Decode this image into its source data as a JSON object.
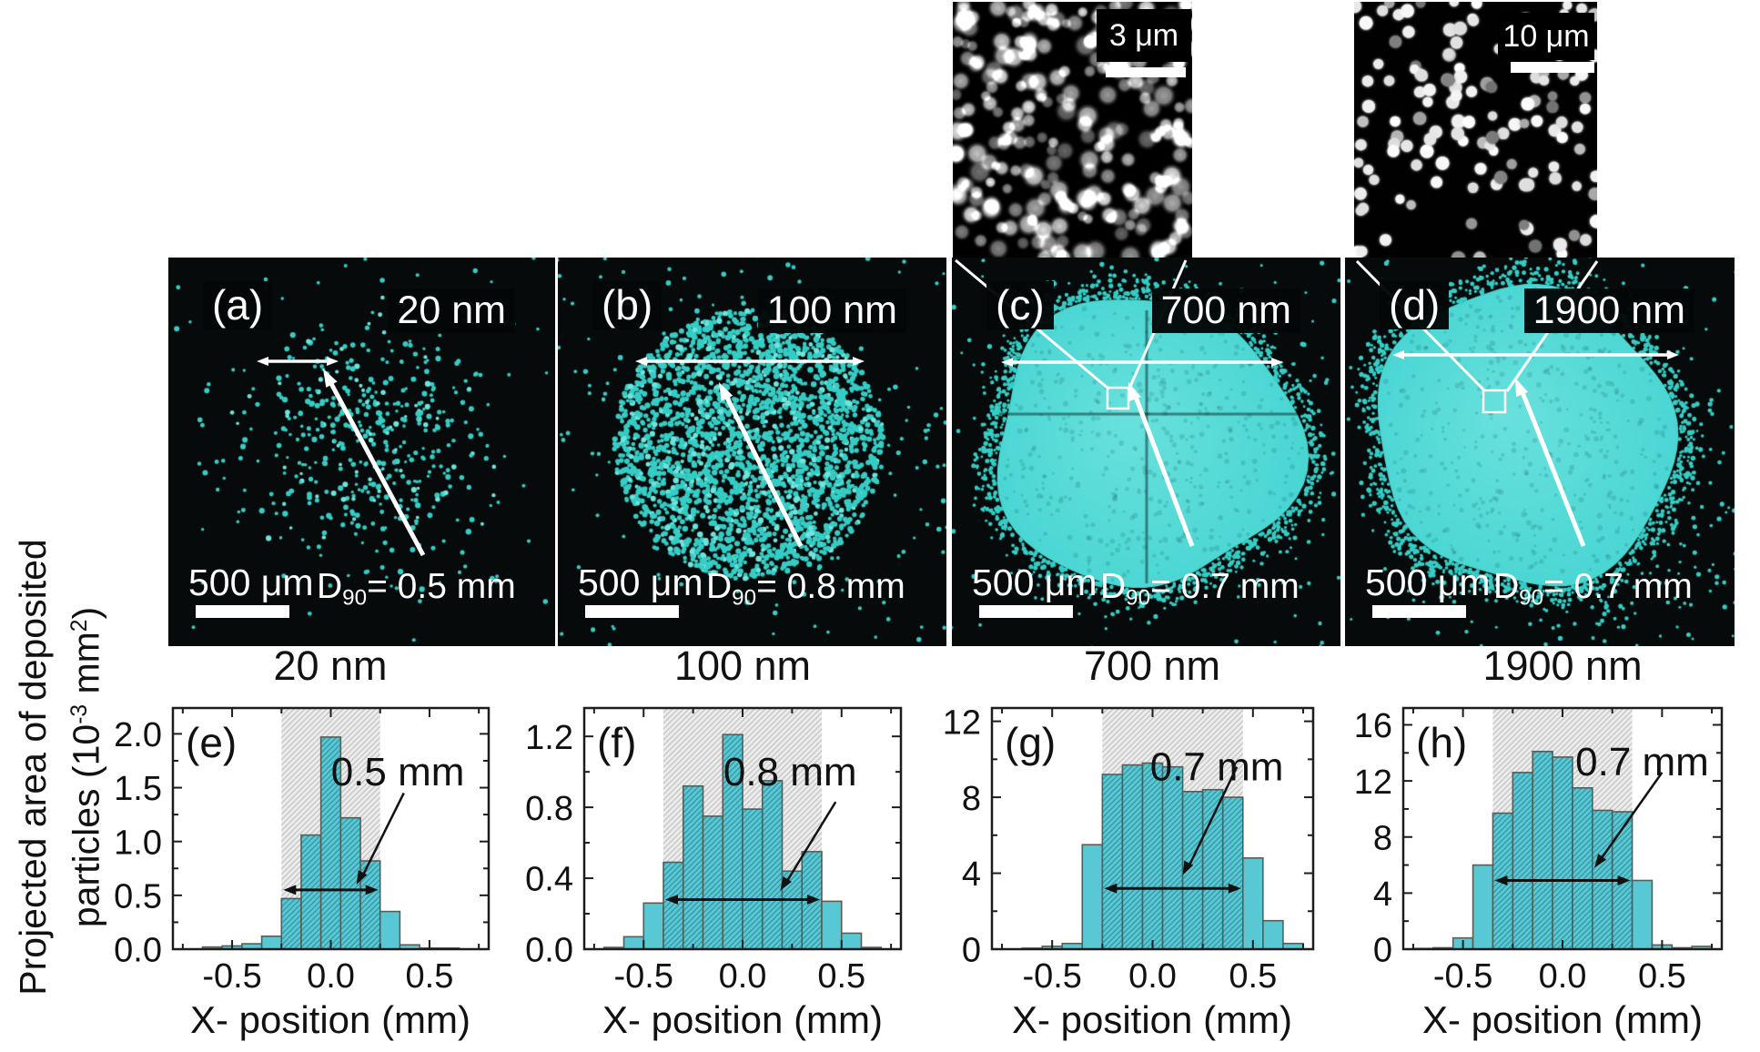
{
  "figure": {
    "xlabel": "X- position (mm)",
    "ylabel": {
      "line1": "Projected area of deposited",
      "l2a": "particles (10",
      "sup1": "-3",
      "l2b": " mm",
      "sup2": "2",
      "l2c": ")"
    }
  },
  "insets": [
    {
      "name": "sem-inset-700nm",
      "scale_label": "3 μm"
    },
    {
      "name": "sem-inset-1900nm",
      "scale_label": "10 μm"
    }
  ],
  "panels": [
    {
      "letter": "(a)",
      "size_label": "20 nm",
      "scalebar_label": "500 μm",
      "d90": {
        "d": "D",
        "sub": "90",
        "rest": "= 0.5 mm"
      }
    },
    {
      "letter": "(b)",
      "size_label": "100 nm",
      "scalebar_label": "500 μm",
      "d90": {
        "d": "D",
        "sub": "90",
        "rest": "= 0.8 mm"
      }
    },
    {
      "letter": "(c)",
      "size_label": "700 nm",
      "scalebar_label": "500 μm",
      "d90": {
        "d": "D",
        "sub": "90",
        "rest": "= 0.7 mm"
      }
    },
    {
      "letter": "(d)",
      "size_label": "1900 nm",
      "scalebar_label": "500 μm",
      "d90": {
        "d": "D",
        "sub": "90",
        "rest": "= 0.7 mm"
      }
    }
  ],
  "colors": {
    "panel_bg": "#060a0a",
    "deposit_cyan": "#35cdc5",
    "deposit_bright": "#6fe4dd",
    "blob_fill": "#49d6d3",
    "bar_fill": "#57c8d4",
    "bar_edge": "#5c5c54",
    "shade_bg": "#ececec",
    "shade_line": "#c4c4c4",
    "bar_hatch": "rgba(25,95,105,0.5)",
    "axis": "#1d1d1d"
  },
  "chart_data": [
    {
      "type": "bar",
      "panel_letter": "(e)",
      "title": "20 nm",
      "xlabel": "X- position (mm)",
      "ylabel": "Projected area of deposited particles (10⁻³ mm²)",
      "bin_width": 0.1,
      "bin_centers": [
        -0.7,
        -0.6,
        -0.5,
        -0.4,
        -0.3,
        -0.2,
        -0.1,
        0.0,
        0.1,
        0.2,
        0.3,
        0.4,
        0.5,
        0.6,
        0.7
      ],
      "values": [
        0,
        0.02,
        0.03,
        0.05,
        0.12,
        0.47,
        1.06,
        1.97,
        1.22,
        0.82,
        0.35,
        0.04,
        0.01,
        0.01,
        0
      ],
      "xlim": [
        -0.8,
        0.8
      ],
      "ylim": [
        0,
        2.24
      ],
      "xticks": [
        -0.5,
        0.0,
        0.5
      ],
      "xtick_labels": [
        "-0.5",
        "0.0",
        "0.5"
      ],
      "yticks": [
        0,
        0.5,
        1.0,
        1.5,
        2.0
      ],
      "ytick_labels": [
        "0.0",
        "0.5",
        "1.0",
        "1.5",
        "2.0"
      ],
      "shaded_region": [
        -0.25,
        0.25
      ],
      "region_label": "0.5 mm",
      "arrow_y": 0.55,
      "grid": false,
      "legend": false
    },
    {
      "type": "bar",
      "panel_letter": "(f)",
      "title": "100 nm",
      "xlabel": "X- position (mm)",
      "ylabel": "Projected area of deposited particles (10⁻³ mm²)",
      "bin_width": 0.1,
      "bin_centers": [
        -0.65,
        -0.55,
        -0.45,
        -0.35,
        -0.25,
        -0.15,
        -0.05,
        0.05,
        0.15,
        0.25,
        0.35,
        0.45,
        0.55,
        0.65
      ],
      "values": [
        0.01,
        0.07,
        0.26,
        0.49,
        0.92,
        0.75,
        1.21,
        0.79,
        0.95,
        0.44,
        0.55,
        0.27,
        0.09,
        0.01
      ],
      "xlim": [
        -0.8,
        0.8
      ],
      "ylim": [
        0,
        1.36
      ],
      "xticks": [
        -0.5,
        0.0,
        0.5
      ],
      "xtick_labels": [
        "-0.5",
        "0.0",
        "0.5"
      ],
      "yticks": [
        0,
        0.4,
        0.8,
        1.2
      ],
      "ytick_labels": [
        "0.0",
        "0.4",
        "0.8",
        "1.2"
      ],
      "shaded_region": [
        -0.4,
        0.4
      ],
      "region_label": "0.8 mm",
      "arrow_y": 0.28,
      "grid": false,
      "legend": false
    },
    {
      "type": "bar",
      "panel_letter": "(g)",
      "title": "700 nm",
      "xlabel": "X- position (mm)",
      "ylabel": "Projected area of deposited particles (10⁻³ mm²)",
      "bin_width": 0.1,
      "bin_centers": [
        -0.7,
        -0.6,
        -0.5,
        -0.4,
        -0.3,
        -0.2,
        -0.1,
        0.0,
        0.1,
        0.2,
        0.3,
        0.4,
        0.5,
        0.6,
        0.7
      ],
      "values": [
        0,
        0.05,
        0.15,
        0.3,
        5.5,
        9.2,
        9.7,
        9.8,
        9.6,
        8.3,
        8.4,
        8.0,
        4.8,
        1.5,
        0.3
      ],
      "xlim": [
        -0.8,
        0.8
      ],
      "ylim": [
        0,
        12.7
      ],
      "xticks": [
        -0.5,
        0.0,
        0.5
      ],
      "xtick_labels": [
        "-0.5",
        "0.0",
        "0.5"
      ],
      "yticks": [
        0,
        4,
        8,
        12
      ],
      "ytick_labels": [
        "0",
        "4",
        "8",
        "12"
      ],
      "shaded_region": [
        -0.25,
        0.45
      ],
      "region_label": "0.7 mm",
      "arrow_y": 3.2,
      "grid": false,
      "legend": false
    },
    {
      "type": "bar",
      "panel_letter": "(h)",
      "title": "1900 nm",
      "xlabel": "X- position (mm)",
      "ylabel": "Projected area of deposited particles (10⁻³ mm²)",
      "bin_width": 0.1,
      "bin_centers": [
        -0.7,
        -0.6,
        -0.5,
        -0.4,
        -0.3,
        -0.2,
        -0.1,
        0.0,
        0.1,
        0.2,
        0.3,
        0.4,
        0.5,
        0.6,
        0.7
      ],
      "values": [
        0.05,
        0.1,
        0.8,
        6.0,
        9.7,
        12.6,
        14.1,
        13.7,
        11.5,
        9.9,
        9.8,
        4.9,
        0.3,
        0.1,
        0.2
      ],
      "xlim": [
        -0.8,
        0.8
      ],
      "ylim": [
        0,
        17.2
      ],
      "xticks": [
        -0.5,
        0.0,
        0.5
      ],
      "xtick_labels": [
        "-0.5",
        "0.0",
        "0.5"
      ],
      "yticks": [
        0,
        4,
        8,
        12,
        16
      ],
      "ytick_labels": [
        "0",
        "4",
        "8",
        "12",
        "16"
      ],
      "shaded_region": [
        -0.35,
        0.35
      ],
      "region_label": "0.7 mm",
      "arrow_y": 4.9,
      "grid": false,
      "legend": false
    }
  ]
}
